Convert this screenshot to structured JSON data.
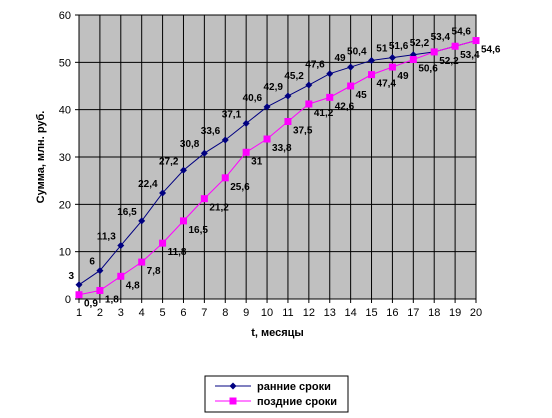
{
  "chart_data": {
    "type": "line",
    "xlabel": "t, месяцы",
    "ylabel": "Сумма, млн. руб.",
    "xlim": [
      1,
      20
    ],
    "ylim": [
      0,
      60
    ],
    "x_ticks": [
      1,
      2,
      3,
      4,
      5,
      6,
      7,
      8,
      9,
      10,
      11,
      12,
      13,
      14,
      15,
      16,
      17,
      18,
      19,
      20
    ],
    "y_ticks": [
      0,
      10,
      20,
      30,
      40,
      50,
      60
    ],
    "grid": true,
    "plot_background": "#c0c0c0",
    "legend_position": "bottom",
    "x": [
      1,
      2,
      3,
      4,
      5,
      6,
      7,
      8,
      9,
      10,
      11,
      12,
      13,
      14,
      15,
      16,
      17,
      18,
      19,
      20
    ],
    "series": [
      {
        "name": "ранние сроки",
        "color": "#000080",
        "marker": "diamond",
        "values": [
          3,
          6,
          11.3,
          16.5,
          22.4,
          27.2,
          30.8,
          33.6,
          37.1,
          40.6,
          42.9,
          45.2,
          47.6,
          49,
          50.4,
          51,
          51.6,
          52.2,
          53.4,
          54.6
        ],
        "labels": [
          "3",
          "6",
          "11,3",
          "16,5",
          "22,4",
          "27,2",
          "30,8",
          "33,6",
          "37,1",
          "40,6",
          "42,9",
          "45,2",
          "47,6",
          "49",
          "50,4",
          "51",
          "51,6",
          "52,2",
          "53,4",
          "54,6"
        ]
      },
      {
        "name": "поздние сроки",
        "color": "#ff00ff",
        "marker": "square",
        "values": [
          0.9,
          1.8,
          4.8,
          7.8,
          11.8,
          16.5,
          21.2,
          25.6,
          31,
          33.8,
          37.5,
          41.2,
          42.6,
          45,
          47.4,
          49,
          50.6,
          52.2,
          53.4,
          54.6
        ],
        "labels": [
          "0,9",
          "1,8",
          "4,8",
          "7,8",
          "11,8",
          "16,5",
          "21,2",
          "25,6",
          "31",
          "33,8",
          "37,5",
          "41,2",
          "42,6",
          "45",
          "47,4",
          "49",
          "50,6",
          "52,2",
          "53,4",
          "54,6"
        ]
      }
    ]
  }
}
